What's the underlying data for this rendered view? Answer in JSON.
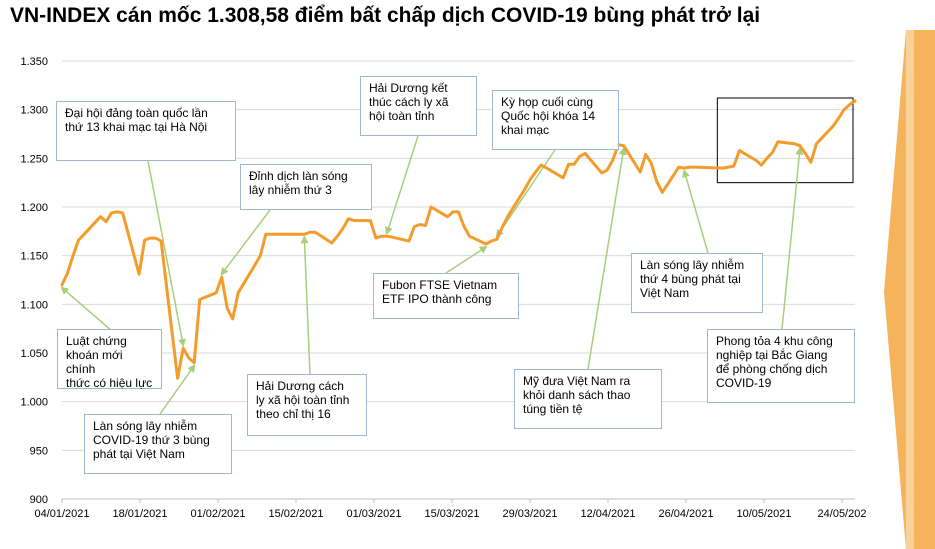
{
  "title": "VN-INDEX cán mốc 1.308,58 điểm bất chấp dịch COVID-19 bùng phát trở lại",
  "colors": {
    "line": "#f39c2b",
    "annotation_arrow": "#a6cf7c",
    "annotation_border": "#9fb7d3",
    "grid": "#d9d9d9",
    "side_decoration": "#f5b35c"
  },
  "chart_data": {
    "type": "line",
    "title": "VN-INDEX cán mốc 1.308,58 điểm bất chấp dịch COVID-19 bùng phát trở lại",
    "xlabel": "",
    "ylabel": "",
    "ylim": [
      900,
      1350
    ],
    "y_ticks": [
      "900",
      "950",
      "1.000",
      "1.050",
      "1.100",
      "1.150",
      "1.200",
      "1.250",
      "1.300",
      "1.350"
    ],
    "x_ticks": [
      "04/01/2021",
      "18/01/2021",
      "01/02/2021",
      "15/02/2021",
      "01/03/2021",
      "15/03/2021",
      "29/03/2021",
      "12/04/2021",
      "26/04/2021",
      "10/05/2021",
      "24/05/202"
    ],
    "grid": true,
    "legend": "none",
    "series": [
      {
        "x": [
          "2021-01-04",
          "2021-01-05",
          "2021-01-06",
          "2021-01-07",
          "2021-01-08",
          "2021-01-11",
          "2021-01-12",
          "2021-01-13",
          "2021-01-14",
          "2021-01-15",
          "2021-01-18",
          "2021-01-19",
          "2021-01-20",
          "2021-01-21",
          "2021-01-22",
          "2021-01-25",
          "2021-01-26",
          "2021-01-27",
          "2021-01-28",
          "2021-01-29",
          "2021-02-01",
          "2021-02-02",
          "2021-02-03",
          "2021-02-04",
          "2021-02-05",
          "2021-02-08",
          "2021-02-09",
          "2021-02-10",
          "2021-02-17",
          "2021-02-18",
          "2021-02-19",
          "2021-02-22",
          "2021-02-23",
          "2021-02-24",
          "2021-02-25",
          "2021-02-26",
          "2021-03-01",
          "2021-03-02",
          "2021-03-03",
          "2021-03-04",
          "2021-03-05",
          "2021-03-08",
          "2021-03-09",
          "2021-03-10",
          "2021-03-11",
          "2021-03-12",
          "2021-03-15",
          "2021-03-16",
          "2021-03-17",
          "2021-03-18",
          "2021-03-19",
          "2021-03-22",
          "2021-03-23",
          "2021-03-24",
          "2021-03-25",
          "2021-03-26",
          "2021-03-29",
          "2021-03-30",
          "2021-03-31",
          "2021-04-01",
          "2021-04-02",
          "2021-04-05",
          "2021-04-06",
          "2021-04-07",
          "2021-04-08",
          "2021-04-09",
          "2021-04-12",
          "2021-04-13",
          "2021-04-14",
          "2021-04-15",
          "2021-04-16",
          "2021-04-19",
          "2021-04-20",
          "2021-04-21",
          "2021-04-22",
          "2021-04-23",
          "2021-04-26",
          "2021-04-27",
          "2021-04-28",
          "2021-04-29",
          "2021-05-04",
          "2021-05-05",
          "2021-05-06",
          "2021-05-07",
          "2021-05-10",
          "2021-05-11",
          "2021-05-12",
          "2021-05-13",
          "2021-05-14",
          "2021-05-17",
          "2021-05-18",
          "2021-05-19",
          "2021-05-20",
          "2021-05-21",
          "2021-05-24",
          "2021-05-25",
          "2021-05-26",
          "2021-05-27",
          "2021-05-28"
        ],
        "values": [
          1120,
          1132,
          1150,
          1166,
          1172,
          1190,
          1185,
          1194,
          1195,
          1194,
          1131,
          1166,
          1168,
          1168,
          1165,
          1024,
          1055,
          1045,
          1040,
          1105,
          1112,
          1128,
          1096,
          1085,
          1112,
          1140,
          1150,
          1172,
          1172,
          1174,
          1174,
          1163,
          1170,
          1178,
          1188,
          1186,
          1186,
          1168,
          1170,
          1170,
          1169,
          1165,
          1180,
          1182,
          1181,
          1200,
          1190,
          1195,
          1195,
          1180,
          1170,
          1162,
          1165,
          1167,
          1180,
          1191,
          1218,
          1228,
          1236,
          1243,
          1240,
          1230,
          1244,
          1244,
          1252,
          1255,
          1235,
          1238,
          1248,
          1264,
          1263,
          1236,
          1254,
          1245,
          1226,
          1215,
          1241,
          1240,
          1241,
          1241,
          1240,
          1241,
          1242,
          1258,
          1248,
          1243,
          1250,
          1256,
          1267,
          1265,
          1263,
          1255,
          1246,
          1265,
          1283,
          1291,
          1300,
          1305,
          1309
        ]
      }
    ],
    "highlight_box": {
      "from": "2021-05-03",
      "to": "2021-05-28",
      "y_from": 1225,
      "y_to": 1312
    },
    "annotations": [
      {
        "text": "Luật chứng\nkhoán mới chính\nthức có hiệu lực",
        "date": "2021-01-04"
      },
      {
        "text": "Đại hội đảng toàn quốc lần\nthứ 13 khai mạc tại Hà Nội",
        "date": "2021-01-26"
      },
      {
        "text": "Làn sóng lây nhiễm\nCOVID-19 thứ 3 bùng\nphát tại Việt Nam",
        "date": "2021-01-28"
      },
      {
        "text": "Đỉnh dịch làn sóng\nlây nhiễm  thứ 3",
        "date": "2021-02-02"
      },
      {
        "text": "Hải Dương cách\nly xã hội toàn tỉnh\ntheo chỉ thị 16",
        "date": "2021-02-17"
      },
      {
        "text": "Hải Dương kết\nthúc cách ly xã\nhội toàn tỉnh",
        "date": "2021-03-04"
      },
      {
        "text": "Fubon FTSE Vietnam\nETF IPO thành công",
        "date": "2021-03-22"
      },
      {
        "text": "Kỳ họp cuối cùng\nQuốc hội khóa 14\nkhai mạc",
        "date": "2021-03-24"
      },
      {
        "text": "Mỹ đưa Việt Nam ra\nkhỏi danh sách thao\ntúng tiền tệ",
        "date": "2021-04-16"
      },
      {
        "text": "Làn sóng lây nhiễm\nthứ 4 bùng phát tại\nViệt Nam",
        "date": "2021-04-27"
      },
      {
        "text": "Phong tỏa 4 khu công\nnghiệp tại Bắc Giang\nđể phòng chống dịch\nCOVID-19",
        "date": "2021-05-18"
      }
    ]
  }
}
